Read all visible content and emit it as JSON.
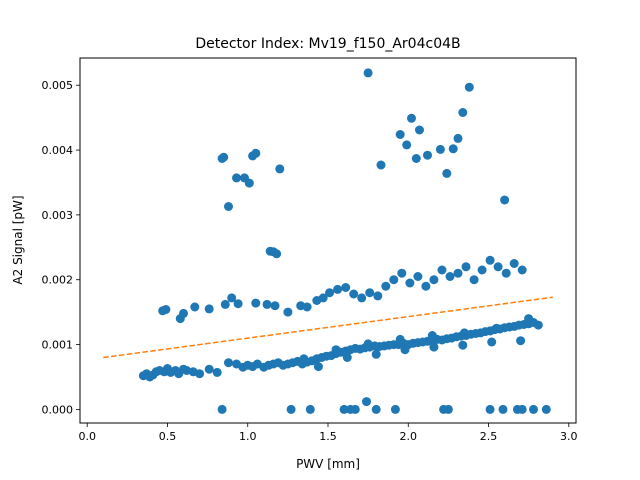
{
  "chart_data": {
    "type": "scatter",
    "title": "Detector Index: Mv19_f150_Ar04c04B",
    "xlabel": "PWV [mm]",
    "ylabel": "A2 Signal [pW]",
    "xlim": [
      -0.045,
      3.045
    ],
    "ylim": [
      -0.00021,
      0.00542
    ],
    "xticks": [
      0.0,
      0.5,
      1.0,
      1.5,
      2.0,
      2.5,
      3.0
    ],
    "xtick_labels": [
      "0.0",
      "0.5",
      "1.0",
      "1.5",
      "2.0",
      "2.5",
      "3.0"
    ],
    "yticks": [
      0.0,
      0.001,
      0.002,
      0.003,
      0.004,
      0.005
    ],
    "ytick_labels": [
      "0.000",
      "0.001",
      "0.002",
      "0.003",
      "0.004",
      "0.005"
    ],
    "colors": {
      "points": "#1f77b4",
      "fit": "#ff7f0e"
    },
    "series": [
      {
        "name": "data",
        "kind": "scatter",
        "points": [
          [
            0.35,
            0.00052
          ],
          [
            0.37,
            0.00055
          ],
          [
            0.39,
            0.0005
          ],
          [
            0.41,
            0.00053
          ],
          [
            0.43,
            0.00058
          ],
          [
            0.45,
            0.0006
          ],
          [
            0.48,
            0.00058
          ],
          [
            0.5,
            0.00063
          ],
          [
            0.52,
            0.00057
          ],
          [
            0.55,
            0.0006
          ],
          [
            0.57,
            0.00055
          ],
          [
            0.6,
            0.00062
          ],
          [
            0.62,
            0.0006
          ],
          [
            0.66,
            0.00058
          ],
          [
            0.7,
            0.00055
          ],
          [
            0.76,
            0.00062
          ],
          [
            0.81,
            0.00057
          ],
          [
            0.88,
            0.00072
          ],
          [
            0.93,
            0.0007
          ],
          [
            0.97,
            0.00065
          ],
          [
            1.0,
            0.00068
          ],
          [
            1.03,
            0.00066
          ],
          [
            1.06,
            0.0007
          ],
          [
            1.1,
            0.00065
          ],
          [
            1.13,
            0.00068
          ],
          [
            1.16,
            0.0007
          ],
          [
            1.19,
            0.00072
          ],
          [
            1.22,
            0.00068
          ],
          [
            1.25,
            0.0007
          ],
          [
            1.28,
            0.00072
          ],
          [
            1.31,
            0.00074
          ],
          [
            1.34,
            0.0007
          ],
          [
            1.37,
            0.00073
          ],
          [
            1.4,
            0.00075
          ],
          [
            1.43,
            0.00078
          ],
          [
            1.46,
            0.0008
          ],
          [
            1.49,
            0.00082
          ],
          [
            1.52,
            0.00083
          ],
          [
            1.55,
            0.00086
          ],
          [
            1.58,
            0.00088
          ],
          [
            1.61,
            0.0009
          ],
          [
            1.64,
            0.00092
          ],
          [
            1.67,
            0.00094
          ],
          [
            1.7,
            0.00093
          ],
          [
            1.73,
            0.00095
          ],
          [
            1.76,
            0.00096
          ],
          [
            1.79,
            0.00098
          ],
          [
            1.82,
            0.00097
          ],
          [
            1.85,
            0.00098
          ],
          [
            1.88,
            0.00099
          ],
          [
            1.91,
            0.001
          ],
          [
            1.94,
            0.001
          ],
          [
            1.97,
            0.00102
          ],
          [
            2.0,
            0.001
          ],
          [
            2.03,
            0.00102
          ],
          [
            2.06,
            0.00103
          ],
          [
            2.09,
            0.00104
          ],
          [
            2.12,
            0.00105
          ],
          [
            2.15,
            0.00106
          ],
          [
            2.18,
            0.00108
          ],
          [
            2.21,
            0.00107
          ],
          [
            2.24,
            0.00109
          ],
          [
            2.27,
            0.0011
          ],
          [
            2.3,
            0.00112
          ],
          [
            2.33,
            0.00113
          ],
          [
            2.36,
            0.00114
          ],
          [
            2.39,
            0.00116
          ],
          [
            2.42,
            0.00117
          ],
          [
            2.45,
            0.00118
          ],
          [
            2.48,
            0.0012
          ],
          [
            2.51,
            0.00121
          ],
          [
            2.54,
            0.00123
          ],
          [
            2.57,
            0.00124
          ],
          [
            2.6,
            0.00126
          ],
          [
            2.63,
            0.00127
          ],
          [
            2.66,
            0.00128
          ],
          [
            2.69,
            0.0013
          ],
          [
            2.72,
            0.00131
          ],
          [
            2.75,
            0.00132
          ],
          [
            2.78,
            0.00134
          ],
          [
            2.81,
            0.0013
          ],
          [
            1.44,
            0.00066
          ],
          [
            1.62,
            0.0008
          ],
          [
            1.8,
            0.00085
          ],
          [
            1.98,
            0.00092
          ],
          [
            2.16,
            0.00096
          ],
          [
            2.34,
            0.00099
          ],
          [
            2.52,
            0.00104
          ],
          [
            2.7,
            0.00106
          ],
          [
            1.35,
            0.00078
          ],
          [
            1.55,
            0.00092
          ],
          [
            1.75,
            0.00101
          ],
          [
            1.95,
            0.00108
          ],
          [
            2.15,
            0.00114
          ],
          [
            2.35,
            0.00118
          ],
          [
            2.55,
            0.00125
          ],
          [
            2.75,
            0.0014
          ],
          [
            0.47,
            0.00152
          ],
          [
            0.49,
            0.00154
          ],
          [
            0.58,
            0.0014
          ],
          [
            0.6,
            0.00148
          ],
          [
            0.67,
            0.00158
          ],
          [
            0.76,
            0.00155
          ],
          [
            0.86,
            0.00162
          ],
          [
            0.9,
            0.00172
          ],
          [
            0.94,
            0.00163
          ],
          [
            1.05,
            0.00164
          ],
          [
            1.12,
            0.00162
          ],
          [
            1.17,
            0.0016
          ],
          [
            1.25,
            0.0015
          ],
          [
            1.33,
            0.0016
          ],
          [
            1.37,
            0.00158
          ],
          [
            1.43,
            0.00168
          ],
          [
            1.47,
            0.00172
          ],
          [
            1.51,
            0.0018
          ],
          [
            1.56,
            0.00185
          ],
          [
            1.61,
            0.00188
          ],
          [
            1.66,
            0.00178
          ],
          [
            1.71,
            0.00172
          ],
          [
            1.76,
            0.0018
          ],
          [
            1.81,
            0.00175
          ],
          [
            1.86,
            0.0019
          ],
          [
            1.91,
            0.002
          ],
          [
            1.96,
            0.0021
          ],
          [
            2.01,
            0.00195
          ],
          [
            2.06,
            0.00205
          ],
          [
            2.11,
            0.0019
          ],
          [
            2.16,
            0.002
          ],
          [
            2.21,
            0.00215
          ],
          [
            2.26,
            0.00205
          ],
          [
            2.31,
            0.0021
          ],
          [
            2.36,
            0.0022
          ],
          [
            2.41,
            0.002
          ],
          [
            2.46,
            0.00215
          ],
          [
            2.51,
            0.0023
          ],
          [
            2.56,
            0.0022
          ],
          [
            2.61,
            0.0021
          ],
          [
            2.66,
            0.00225
          ],
          [
            2.71,
            0.00215
          ],
          [
            0.84,
            0.00387
          ],
          [
            0.85,
            0.00389
          ],
          [
            0.88,
            0.00313
          ],
          [
            0.93,
            0.00357
          ],
          [
            0.98,
            0.00357
          ],
          [
            1.01,
            0.00349
          ],
          [
            1.03,
            0.00391
          ],
          [
            1.05,
            0.00395
          ],
          [
            1.14,
            0.00244
          ],
          [
            1.16,
            0.00243
          ],
          [
            1.18,
            0.0024
          ],
          [
            1.2,
            0.00371
          ],
          [
            1.75,
            0.00519
          ],
          [
            1.83,
            0.00377
          ],
          [
            1.95,
            0.00424
          ],
          [
            1.99,
            0.00408
          ],
          [
            2.02,
            0.00449
          ],
          [
            2.05,
            0.00387
          ],
          [
            2.07,
            0.00431
          ],
          [
            2.12,
            0.00392
          ],
          [
            2.2,
            0.00401
          ],
          [
            2.24,
            0.00364
          ],
          [
            2.28,
            0.00402
          ],
          [
            2.31,
            0.00418
          ],
          [
            2.34,
            0.00458
          ],
          [
            2.38,
            0.00497
          ],
          [
            2.6,
            0.00323
          ],
          [
            0.84,
            0.0
          ],
          [
            1.27,
            0.0
          ],
          [
            1.39,
            0.0
          ],
          [
            1.6,
            0.0
          ],
          [
            1.64,
            0.0
          ],
          [
            1.67,
            0.0
          ],
          [
            1.74,
            0.00012
          ],
          [
            1.8,
            0.0
          ],
          [
            1.92,
            0.0
          ],
          [
            2.22,
            0.0
          ],
          [
            2.25,
            0.0
          ],
          [
            2.51,
            0.0
          ],
          [
            2.59,
            0.0
          ],
          [
            2.68,
            0.0
          ],
          [
            2.71,
            0.0
          ],
          [
            2.78,
            0.0
          ],
          [
            2.86,
            0.0
          ]
        ]
      },
      {
        "name": "fit",
        "kind": "dashed-line",
        "points": [
          [
            0.1,
            0.0008
          ],
          [
            2.9,
            0.00173
          ]
        ]
      }
    ]
  }
}
